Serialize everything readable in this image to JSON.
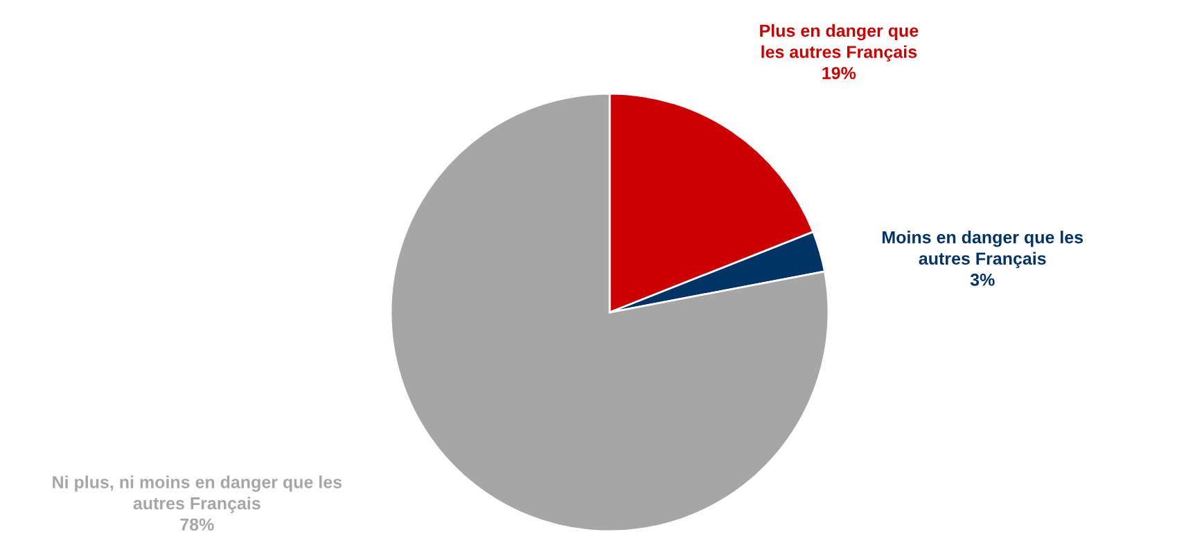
{
  "chart_data": {
    "type": "pie",
    "categories": [
      "Plus en danger que\nles autres Français",
      "Moins en danger que les\nautres Français",
      "Ni plus, ni moins en danger que les\nautres Français"
    ],
    "values": [
      19,
      3,
      78
    ],
    "colors": [
      "#cc0000",
      "#003366",
      "#a6a6a6"
    ],
    "value_labels": [
      "19%",
      "3%",
      "78%"
    ]
  }
}
